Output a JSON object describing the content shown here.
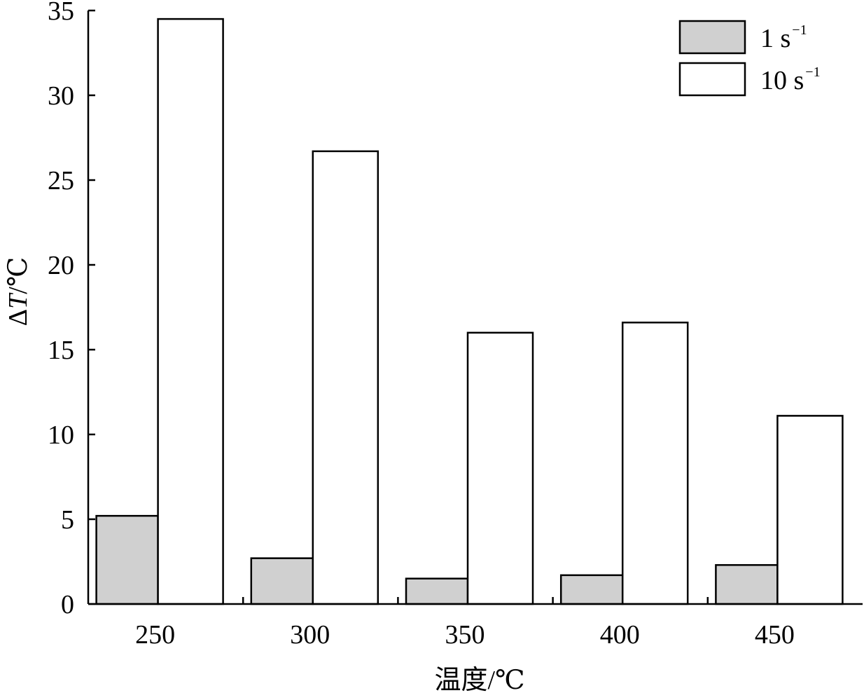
{
  "chart_data": {
    "type": "bar",
    "categories": [
      "250",
      "300",
      "350",
      "400",
      "450"
    ],
    "series": [
      {
        "name": "1 s",
        "name_sup": "−1",
        "color": "#d0d0d0",
        "values": [
          5.2,
          2.7,
          1.5,
          1.7,
          2.3
        ]
      },
      {
        "name": "10 s",
        "name_sup": "−1",
        "color": "#ffffff",
        "values": [
          34.5,
          26.7,
          16.0,
          16.6,
          11.1
        ]
      }
    ],
    "xlabel": "温度/℃",
    "ylabel": {
      "prefix": "Δ",
      "italic": "T",
      "suffix": "/℃"
    },
    "ylim": [
      0,
      35
    ],
    "yticks": [
      0,
      5,
      10,
      15,
      20,
      25,
      30,
      35
    ],
    "grid": false,
    "legend_position": "top-right"
  }
}
